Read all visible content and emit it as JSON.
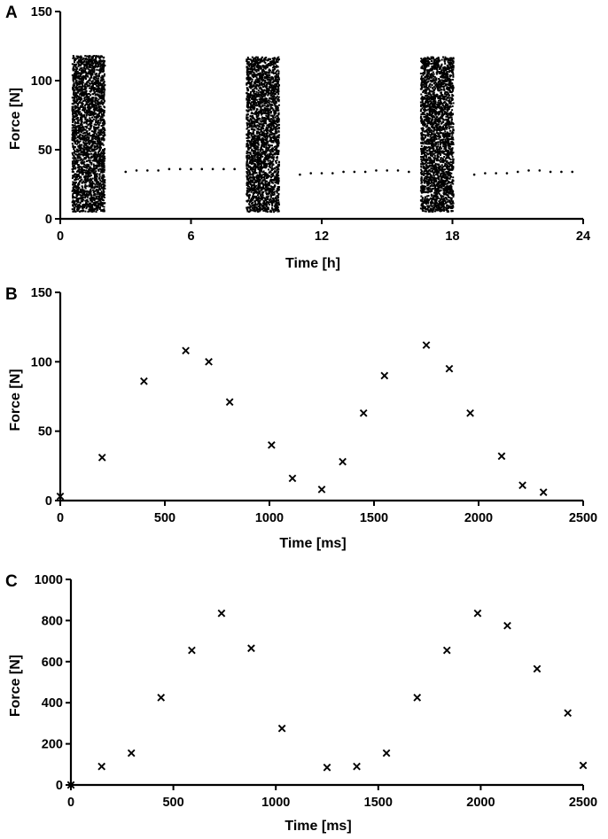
{
  "colors": {
    "ink": "#000000",
    "background": "#ffffff"
  },
  "chart_data": [
    {
      "panel": "A",
      "type": "scatter",
      "xlabel": "Time [h]",
      "ylabel": "Force [N]",
      "xlim": [
        0,
        24
      ],
      "ylim": [
        0,
        150
      ],
      "xticks": [
        "0",
        "6",
        "12",
        "18",
        "24"
      ],
      "yticks": [
        "0",
        "50",
        "100",
        "150"
      ],
      "series": [
        {
          "name": "activity bursts (dense samples)",
          "marker": "dot",
          "bursts": [
            {
              "t_start": 0.55,
              "t_end": 2.05,
              "force_min": 5,
              "force_max": 118
            },
            {
              "t_start": 8.55,
              "t_end": 10.05,
              "force_min": 5,
              "force_max": 117
            },
            {
              "t_start": 16.55,
              "t_end": 18.05,
              "force_min": 5,
              "force_max": 117
            }
          ]
        },
        {
          "name": "rest samples",
          "marker": "dot",
          "x": [
            3.0,
            3.5,
            4.0,
            4.5,
            5.0,
            5.5,
            6.0,
            6.5,
            7.0,
            7.5,
            8.0,
            11.0,
            11.5,
            12.0,
            12.5,
            13.0,
            13.5,
            14.0,
            14.5,
            15.0,
            15.5,
            16.0,
            19.0,
            19.5,
            20.0,
            20.5,
            21.0,
            21.5,
            22.0,
            22.5,
            23.0,
            23.5
          ],
          "y": [
            34,
            35,
            35,
            35,
            36,
            36,
            36,
            36,
            36,
            36,
            36,
            32,
            33,
            33,
            33,
            34,
            34,
            34,
            35,
            35,
            35,
            34,
            32,
            33,
            33,
            33,
            34,
            35,
            35,
            34,
            34,
            34
          ]
        }
      ]
    },
    {
      "panel": "B",
      "type": "scatter",
      "xlabel": "Time [ms]",
      "ylabel": "Force [N]",
      "xlim": [
        0,
        2500
      ],
      "ylim": [
        0,
        150
      ],
      "xticks": [
        "0",
        "500",
        "1000",
        "1500",
        "2000",
        "2500"
      ],
      "yticks": [
        "0",
        "50",
        "100",
        "150"
      ],
      "series": [
        {
          "name": "force samples",
          "marker": "x",
          "x": [
            0,
            200,
            400,
            600,
            710,
            810,
            1010,
            1110,
            1250,
            1350,
            1450,
            1550,
            1750,
            1860,
            1960,
            2110,
            2210,
            2310
          ],
          "y": [
            3,
            31,
            86,
            108,
            100,
            71,
            40,
            16,
            8,
            28,
            63,
            90,
            112,
            95,
            63,
            32,
            11,
            6
          ]
        }
      ]
    },
    {
      "panel": "C",
      "type": "scatter",
      "xlabel": "Time [ms]",
      "ylabel": "Force [N]",
      "xlim": [
        0,
        2500
      ],
      "ylim": [
        0,
        1000
      ],
      "xticks": [
        "0",
        "500",
        "1000",
        "1500",
        "2000",
        "2500"
      ],
      "yticks": [
        "0",
        "200",
        "400",
        "600",
        "800",
        "1000"
      ],
      "series": [
        {
          "name": "force samples",
          "marker": "x",
          "x": [
            0,
            150,
            295,
            440,
            590,
            735,
            880,
            1030,
            1250,
            1395,
            1540,
            1690,
            1835,
            1985,
            2130,
            2275,
            2425,
            2500
          ],
          "y": [
            0,
            90,
            155,
            425,
            655,
            835,
            665,
            275,
            85,
            90,
            155,
            425,
            655,
            835,
            775,
            565,
            350,
            95
          ]
        }
      ]
    }
  ]
}
